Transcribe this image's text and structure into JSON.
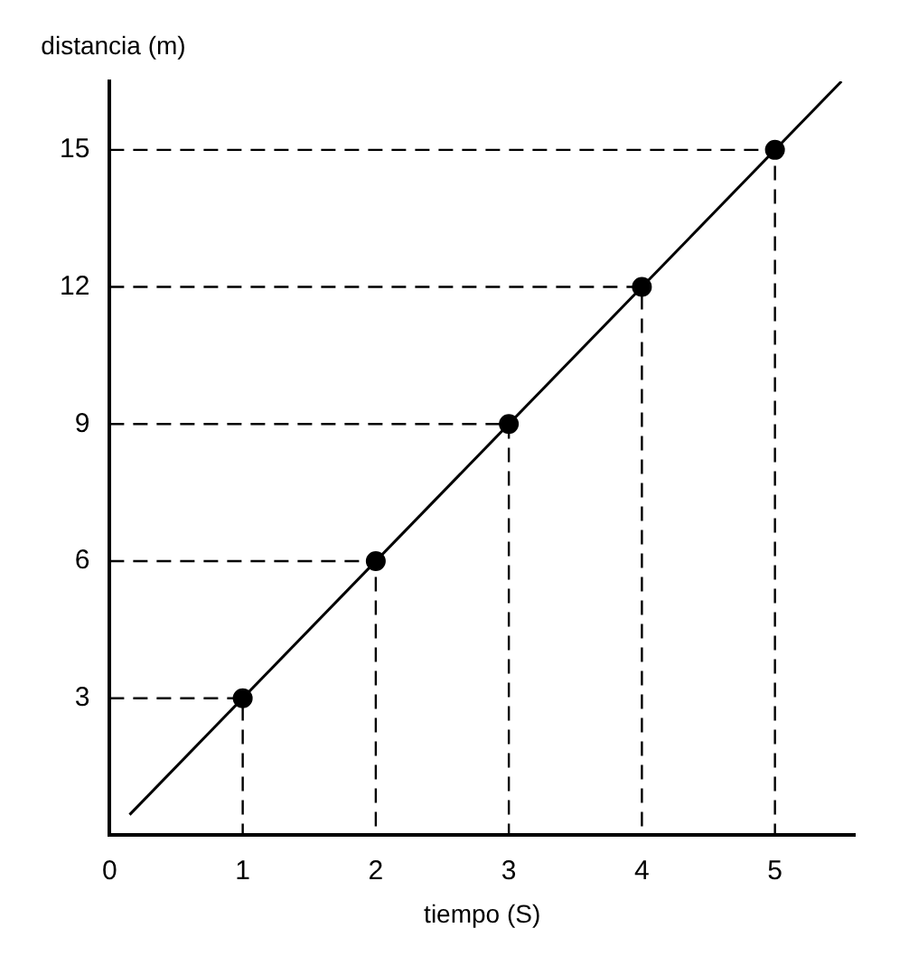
{
  "chart_data": {
    "type": "scatter",
    "xlabel": "tiempo (S)",
    "ylabel": "distancia (m)",
    "xlim": [
      0,
      5.6
    ],
    "ylim": [
      0,
      16.5
    ],
    "xticks": [
      0,
      1,
      2,
      3,
      4,
      5
    ],
    "yticks": [
      3,
      6,
      9,
      12,
      15
    ],
    "legend": false,
    "marker": "circle",
    "series": [
      {
        "type": "line",
        "color": "#000000",
        "x": [
          0.15,
          5.5
        ],
        "values": [
          0.45,
          16.5
        ],
        "marker": "none",
        "line_style": "solid"
      },
      {
        "type": "line",
        "color": "#000000",
        "x": [
          0,
          1,
          1
        ],
        "values": [
          3,
          3,
          0
        ],
        "marker": "none",
        "line_style": "dashed"
      },
      {
        "type": "line",
        "color": "#000000",
        "x": [
          0,
          2,
          2
        ],
        "values": [
          6,
          6,
          0
        ],
        "marker": "none",
        "line_style": "dashed"
      },
      {
        "type": "line",
        "color": "#000000",
        "x": [
          0,
          3,
          3
        ],
        "values": [
          9,
          9,
          0
        ],
        "marker": "none",
        "line_style": "dashed"
      },
      {
        "type": "line",
        "color": "#000000",
        "x": [
          0,
          4,
          4
        ],
        "values": [
          12,
          12,
          0
        ],
        "marker": "none",
        "line_style": "dashed"
      },
      {
        "type": "line",
        "color": "#000000",
        "x": [
          0,
          5,
          5
        ],
        "values": [
          15,
          15,
          0
        ],
        "marker": "none",
        "line_style": "dashed"
      },
      {
        "color": "#000000",
        "x": [
          1,
          2,
          3,
          4,
          5
        ],
        "values": [
          3,
          6,
          9,
          12,
          15
        ]
      }
    ]
  }
}
